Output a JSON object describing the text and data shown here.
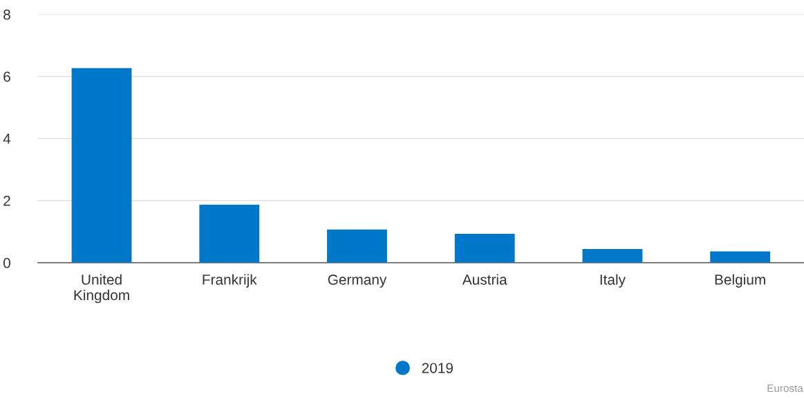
{
  "chart_data": {
    "type": "bar",
    "categories": [
      "United\nKingdom",
      "Frankrijk",
      "Germany",
      "Austria",
      "Italy",
      "Belgium"
    ],
    "series": [
      {
        "name": "2019",
        "color": "#0077c8",
        "values": [
          6.27,
          1.87,
          1.07,
          0.93,
          0.44,
          0.36
        ]
      }
    ],
    "ylim": [
      0,
      8
    ],
    "yticks": [
      0,
      2,
      4,
      6,
      8
    ],
    "grid": "y",
    "legend": "bottom",
    "annotations": [
      "Eurosta"
    ]
  }
}
